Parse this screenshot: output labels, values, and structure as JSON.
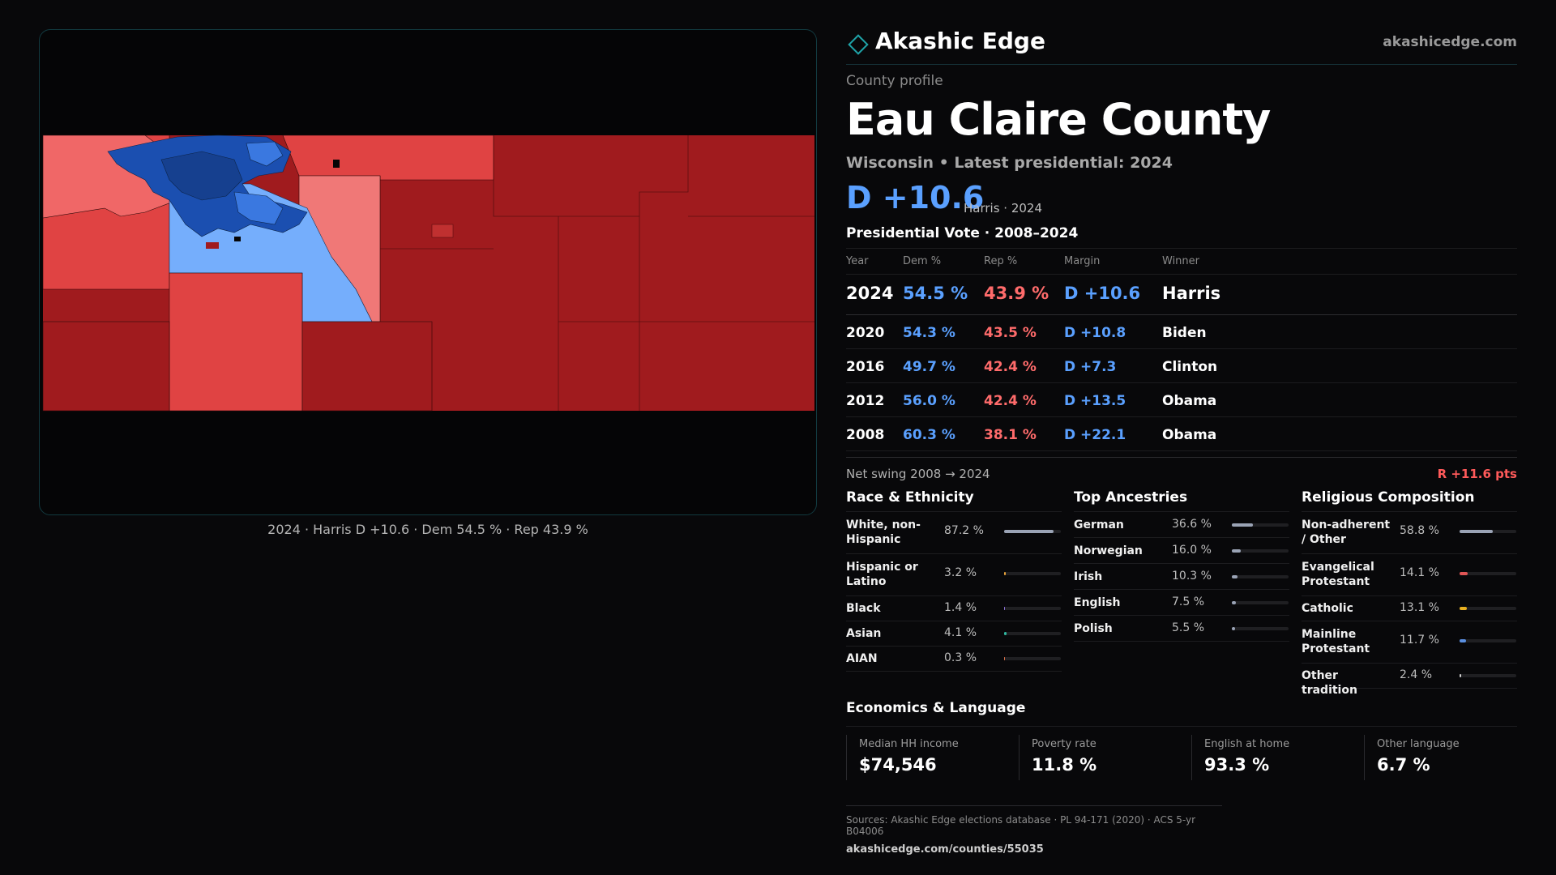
{
  "map": {
    "caption": "2024 · Harris D +10.6 · Dem 54.5 % · Rep 43.9 %",
    "colors": {
      "strong_dem": "#1b4fb0",
      "dem": "#3a78e0",
      "lean_dem": "#75aefc",
      "lean_rep": "#f07877",
      "rep": "#e04343",
      "strong_rep": "#a01b1e"
    }
  },
  "brand": {
    "name": "Akashic Edge",
    "url": "akashicedge.com"
  },
  "profile": {
    "eyebrow": "County profile",
    "title": "Eau Claire County",
    "subtitle": "Wisconsin • Latest presidential: 2024",
    "margin": "D +10.6",
    "margin_note": "Harris · 2024"
  },
  "presidential": {
    "heading": "Presidential Vote · 2008–2024",
    "columns": {
      "year": "Year",
      "dem": "Dem %",
      "rep": "Rep %",
      "margin": "Margin",
      "winner": "Winner"
    },
    "rows": [
      {
        "year": "2024",
        "dem": "54.5 %",
        "rep": "43.9 %",
        "margin": "D +10.6",
        "winner": "Harris"
      },
      {
        "year": "2020",
        "dem": "54.3 %",
        "rep": "43.5 %",
        "margin": "D +10.8",
        "winner": "Biden"
      },
      {
        "year": "2016",
        "dem": "49.7 %",
        "rep": "42.4 %",
        "margin": "D +7.3",
        "winner": "Clinton"
      },
      {
        "year": "2012",
        "dem": "56.0 %",
        "rep": "42.4 %",
        "margin": "D +13.5",
        "winner": "Obama"
      },
      {
        "year": "2008",
        "dem": "60.3 %",
        "rep": "38.1 %",
        "margin": "D +22.1",
        "winner": "Obama"
      }
    ],
    "swing_label": "Net swing 2008 → 2024",
    "swing_value": "R +11.6 pts"
  },
  "race": {
    "title": "Race & Ethnicity",
    "items": [
      {
        "label": "White, non-Hispanic",
        "value": "87.2 %",
        "pct": 87.2,
        "color": "#9aa3b5"
      },
      {
        "label": "Hispanic or Latino",
        "value": "3.2 %",
        "pct": 3.2,
        "color": "#e8a23a"
      },
      {
        "label": "Black",
        "value": "1.4 %",
        "pct": 1.4,
        "color": "#8b6fd6"
      },
      {
        "label": "Asian",
        "value": "4.1 %",
        "pct": 4.1,
        "color": "#2fb7a0"
      },
      {
        "label": "AIAN",
        "value": "0.3 %",
        "pct": 0.3,
        "color": "#d9704a"
      }
    ]
  },
  "ancestry": {
    "title": "Top Ancestries",
    "items": [
      {
        "label": "German",
        "value": "36.6 %",
        "pct": 36.6,
        "color": "#9aa3b5"
      },
      {
        "label": "Norwegian",
        "value": "16.0 %",
        "pct": 16.0,
        "color": "#9aa3b5"
      },
      {
        "label": "Irish",
        "value": "10.3 %",
        "pct": 10.3,
        "color": "#9aa3b5"
      },
      {
        "label": "English",
        "value": "7.5 %",
        "pct": 7.5,
        "color": "#9aa3b5"
      },
      {
        "label": "Polish",
        "value": "5.5 %",
        "pct": 5.5,
        "color": "#9aa3b5"
      }
    ]
  },
  "religion": {
    "title": "Religious Composition",
    "items": [
      {
        "label": "Non-adherent / Other",
        "value": "58.8 %",
        "pct": 58.8,
        "color": "#9aa3b5"
      },
      {
        "label": "Evangelical Protestant",
        "value": "14.1 %",
        "pct": 14.1,
        "color": "#e05555"
      },
      {
        "label": "Catholic",
        "value": "13.1 %",
        "pct": 13.1,
        "color": "#e8b020"
      },
      {
        "label": "Mainline Protestant",
        "value": "11.7 %",
        "pct": 11.7,
        "color": "#5a8fe0"
      },
      {
        "label": "Other tradition",
        "value": "2.4 %",
        "pct": 2.4,
        "color": "#cfcfcf"
      }
    ]
  },
  "economics": {
    "heading": "Economics & Language",
    "cells": [
      {
        "label": "Median HH income",
        "value": "$74,546"
      },
      {
        "label": "Poverty rate",
        "value": "11.8 %"
      },
      {
        "label": "English at home",
        "value": "93.3 %"
      },
      {
        "label": "Other language",
        "value": "6.7 %"
      }
    ]
  },
  "sources": {
    "text": "Sources: Akashic Edge elections database · PL 94-171 (2020) · ACS 5-yr B04006",
    "link": "akashicedge.com/counties/55035"
  }
}
